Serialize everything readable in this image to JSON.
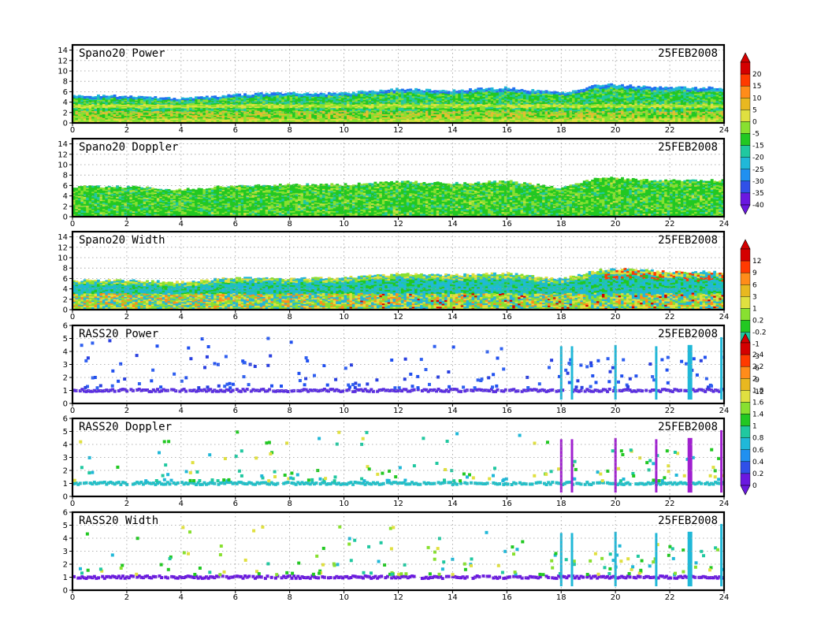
{
  "chart_data": [
    {
      "type": "heatmap",
      "title": "Spano20 Power",
      "date": "25FEB2008",
      "x_ticks": [
        "0",
        "2",
        "4",
        "6",
        "8",
        "10",
        "12",
        "14",
        "16",
        "18",
        "20",
        "22",
        "24"
      ],
      "y_ticks": [
        "0",
        "2",
        "4",
        "6",
        "8",
        "10",
        "12",
        "14"
      ],
      "xlim": [
        0,
        24
      ],
      "ylim": [
        0,
        15
      ],
      "grid": true,
      "top_height_km": [
        [
          0,
          5.3
        ],
        [
          2,
          5.2
        ],
        [
          4,
          4.7
        ],
        [
          6,
          5.5
        ],
        [
          8,
          5.8
        ],
        [
          10,
          5.7
        ],
        [
          12,
          6.6
        ],
        [
          14,
          6.3
        ],
        [
          16,
          6.8
        ],
        [
          18,
          5.8
        ],
        [
          19.5,
          7.5
        ],
        [
          20.5,
          7.2
        ],
        [
          22,
          6.8
        ],
        [
          24,
          6.8
        ]
      ],
      "colorbar": {
        "labels": [
          "20",
          "15",
          "10",
          "5",
          "0",
          "-5",
          "-15",
          "-20",
          "-25",
          "-30",
          "-35",
          "-40"
        ],
        "colors": [
          "#d40000",
          "#ff3a00",
          "#ff8c1a",
          "#e8b820",
          "#e0e040",
          "#88e030",
          "#22c822",
          "#20c8a0",
          "#20b8d8",
          "#2090f0",
          "#3050e8",
          "#6a18e0"
        ]
      }
    },
    {
      "type": "heatmap",
      "title": "Spano20 Doppler",
      "date": "25FEB2008",
      "x_ticks": [
        "0",
        "2",
        "4",
        "6",
        "8",
        "10",
        "12",
        "14",
        "16",
        "18",
        "20",
        "22",
        "24"
      ],
      "y_ticks": [
        "0",
        "2",
        "4",
        "6",
        "8",
        "10",
        "12",
        "14"
      ],
      "xlim": [
        0,
        24
      ],
      "ylim": [
        0,
        15
      ],
      "grid": true,
      "top_height_km": [
        [
          0,
          5.8
        ],
        [
          2,
          5.8
        ],
        [
          4,
          5.2
        ],
        [
          6,
          6.0
        ],
        [
          8,
          6.2
        ],
        [
          10,
          6.2
        ],
        [
          12,
          6.8
        ],
        [
          14,
          6.4
        ],
        [
          16,
          6.9
        ],
        [
          18,
          5.6
        ],
        [
          19.5,
          7.6
        ],
        [
          20.5,
          7.3
        ],
        [
          22,
          7.0
        ],
        [
          24,
          7.0
        ]
      ]
    },
    {
      "type": "heatmap",
      "title": "Spano20 Width",
      "date": "25FEB2008",
      "x_ticks": [
        "0",
        "2",
        "4",
        "6",
        "8",
        "10",
        "12",
        "14",
        "16",
        "18",
        "20",
        "22",
        "24"
      ],
      "y_ticks": [
        "0",
        "2",
        "4",
        "6",
        "8",
        "10",
        "12",
        "14"
      ],
      "xlim": [
        0,
        24
      ],
      "ylim": [
        0,
        15
      ],
      "grid": true,
      "top_height_km": [
        [
          0,
          5.6
        ],
        [
          2,
          5.7
        ],
        [
          4,
          5.3
        ],
        [
          6,
          6.2
        ],
        [
          8,
          6.0
        ],
        [
          10,
          6.2
        ],
        [
          12,
          6.9
        ],
        [
          14,
          6.7
        ],
        [
          16,
          7.0
        ],
        [
          18,
          5.9
        ],
        [
          19.5,
          7.8
        ],
        [
          20.5,
          7.8
        ],
        [
          22,
          7.3
        ],
        [
          24,
          7.3
        ]
      ],
      "colorbar": {
        "labels": [
          "12",
          "9",
          "6",
          "3",
          "1",
          "0.2",
          "-0.2",
          "-1",
          "-3",
          "-6",
          "-9",
          "-12"
        ],
        "colors": [
          "#d40000",
          "#ff3a00",
          "#ff8c1a",
          "#e8b820",
          "#e0e040",
          "#88e030",
          "#22c822",
          "#20c8a0",
          "#20b8d8",
          "#2090f0",
          "#3050e8",
          "#6a18e0"
        ]
      }
    },
    {
      "type": "scatter",
      "title": "RASS20 Power",
      "date": "25FEB2008",
      "x_ticks": [
        "0",
        "2",
        "4",
        "6",
        "8",
        "10",
        "12",
        "14",
        "16",
        "18",
        "20",
        "22",
        "24"
      ],
      "y_ticks": [
        "0",
        "1",
        "2",
        "3",
        "4",
        "5",
        "6"
      ],
      "xlim": [
        0,
        24
      ],
      "ylim": [
        0,
        6
      ],
      "grid": true,
      "base_layer_km": 1.0,
      "vertical_profiles_hours": [
        18.0,
        18.4,
        20.0,
        21.5,
        22.7,
        23.9
      ],
      "colorbar": {
        "labels": [
          "2.4",
          "2.2",
          "2",
          "1.8",
          "1.6",
          "1.4",
          "1",
          "0.8",
          "0.6",
          "0.4",
          "0.2",
          "0"
        ],
        "colors": [
          "#d40000",
          "#ff3a00",
          "#ff8c1a",
          "#e8b820",
          "#e0e040",
          "#88e030",
          "#22c822",
          "#20c8a0",
          "#20b8d8",
          "#2090f0",
          "#3050e8",
          "#6a18e0"
        ]
      }
    },
    {
      "type": "scatter",
      "title": "RASS20 Doppler",
      "date": "25FEB2008",
      "x_ticks": [
        "0",
        "2",
        "4",
        "6",
        "8",
        "10",
        "12",
        "14",
        "16",
        "18",
        "20",
        "22",
        "24"
      ],
      "y_ticks": [
        "0",
        "1",
        "2",
        "3",
        "4",
        "5",
        "6"
      ],
      "xlim": [
        0,
        24
      ],
      "ylim": [
        0,
        6
      ],
      "grid": true,
      "base_layer_km": 1.0,
      "vertical_profiles_hours": [
        18.0,
        18.4,
        20.0,
        21.5,
        22.7,
        23.9
      ]
    },
    {
      "type": "scatter",
      "title": "RASS20 Width",
      "date": "25FEB2008",
      "x_ticks": [
        "0",
        "2",
        "4",
        "6",
        "8",
        "10",
        "12",
        "14",
        "16",
        "18",
        "20",
        "22",
        "24"
      ],
      "y_ticks": [
        "0",
        "1",
        "2",
        "3",
        "4",
        "5",
        "6"
      ],
      "xlim": [
        0,
        24
      ],
      "ylim": [
        0,
        6
      ],
      "grid": true,
      "base_layer_km": 1.0,
      "vertical_profiles_hours": [
        18.0,
        18.4,
        20.0,
        21.5,
        22.7,
        23.9
      ]
    }
  ]
}
